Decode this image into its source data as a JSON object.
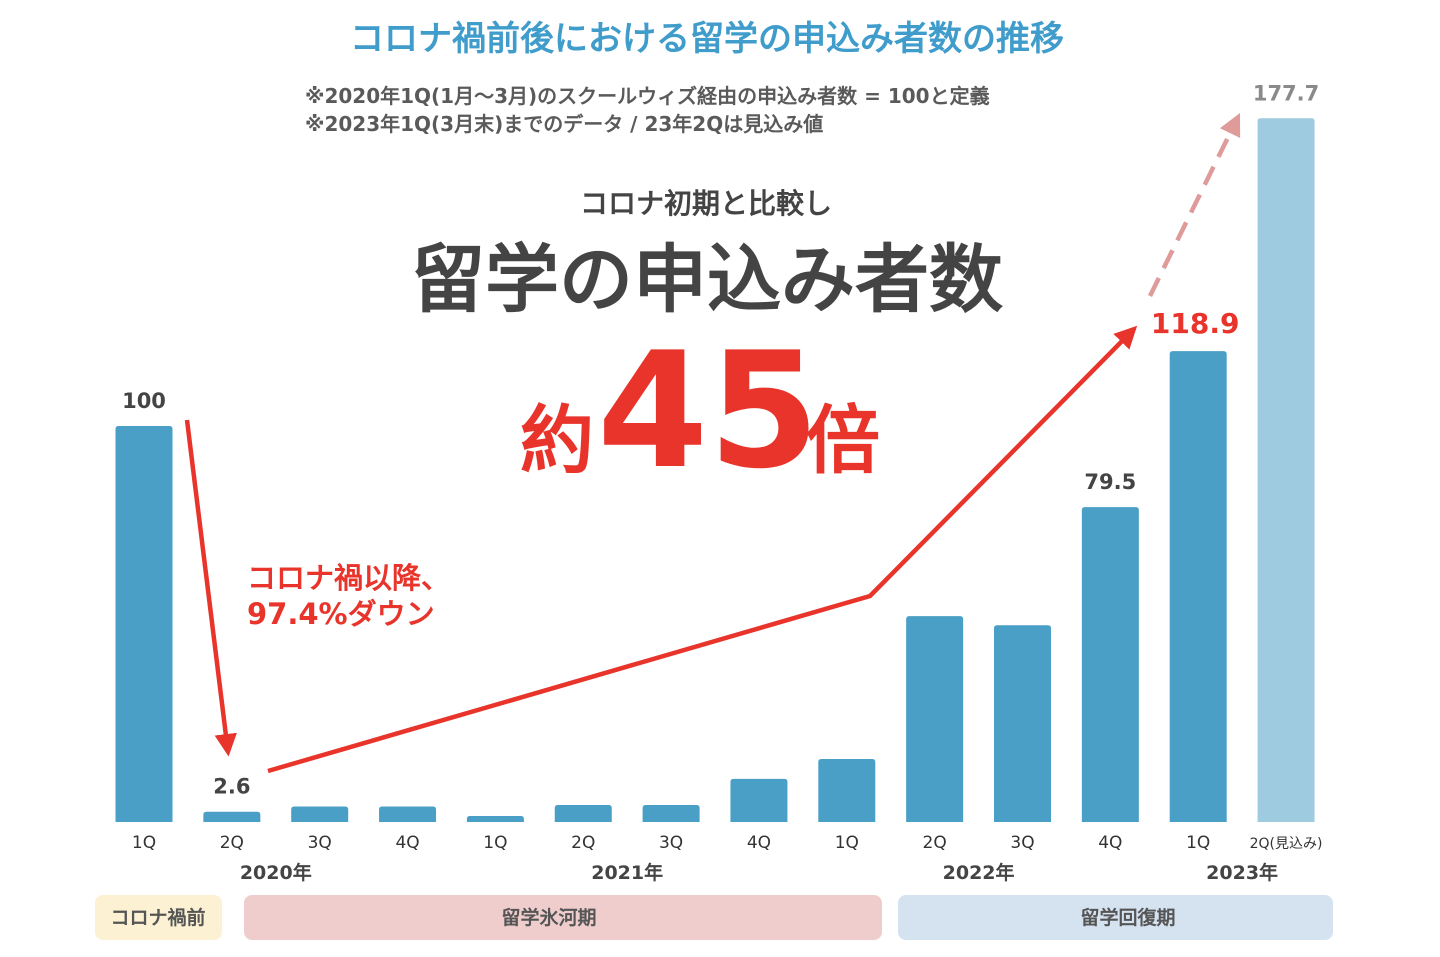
{
  "title": "コロナ禍前後における留学の申込み者数の推移",
  "notes": [
    "※2020年1Q(1月〜3月)のスクールウィズ経由の申込み者数 = 100と定義",
    "※2023年1Q(3月末)までのデータ / 23年2Qは見込み値"
  ],
  "headline": {
    "lead": "コロナ初期と比較し",
    "main": "留学の申込み者数",
    "prefix": "約",
    "number": "45",
    "suffix": "倍"
  },
  "annotation": {
    "line1": "コロナ禍以降、",
    "line2": "97.4%ダウン"
  },
  "phases": [
    {
      "label": "コロナ禍前",
      "color": "#fcf1d3"
    },
    {
      "label": "留学氷河期",
      "color": "#efcdcd"
    },
    {
      "label": "留学回復期",
      "color": "#d5e2f0"
    }
  ],
  "colors": {
    "bar": "#4a9fc6",
    "bar_projected": "#9ecbdf",
    "accent_red": "#e8342a",
    "arrow_projected": "#df9a9a",
    "title_blue": "#3f9ccb"
  },
  "chart_data": {
    "type": "bar",
    "title": "コロナ禍前後における留学の申込み者数の推移",
    "xlabel": "",
    "ylabel": "",
    "ylim": [
      0,
      180
    ],
    "grid": false,
    "categories": [
      "2020 1Q",
      "2020 2Q",
      "2020 3Q",
      "2020 4Q",
      "2021 1Q",
      "2021 2Q",
      "2021 3Q",
      "2021 4Q",
      "2022 1Q",
      "2022 2Q",
      "2022 3Q",
      "2022 4Q",
      "2023 1Q",
      "2023 2Q(見込み)"
    ],
    "quarter_labels": [
      "1Q",
      "2Q",
      "3Q",
      "4Q",
      "1Q",
      "2Q",
      "3Q",
      "4Q",
      "1Q",
      "2Q",
      "3Q",
      "4Q",
      "1Q",
      "2Q(見込み)"
    ],
    "year_labels": [
      {
        "text": "2020年",
        "from": 0,
        "to": 3
      },
      {
        "text": "2021年",
        "from": 4,
        "to": 7
      },
      {
        "text": "2022年",
        "from": 8,
        "to": 11
      },
      {
        "text": "2023年",
        "from": 12,
        "to": 13
      }
    ],
    "values": [
      100,
      2.6,
      3.9,
      3.9,
      1.5,
      4.3,
      4.3,
      10.9,
      15.9,
      52.0,
      49.7,
      79.5,
      118.9,
      177.7
    ],
    "projected": [
      false,
      false,
      false,
      false,
      false,
      false,
      false,
      false,
      false,
      false,
      false,
      false,
      false,
      true
    ],
    "data_labels": [
      {
        "index": 0,
        "text": "100",
        "style": "normal"
      },
      {
        "index": 1,
        "text": "2.6",
        "style": "normal"
      },
      {
        "index": 11,
        "text": "79.5",
        "style": "normal"
      },
      {
        "index": 12,
        "text": "118.9",
        "style": "highlight"
      },
      {
        "index": 13,
        "text": "177.7",
        "style": "projected"
      }
    ]
  }
}
